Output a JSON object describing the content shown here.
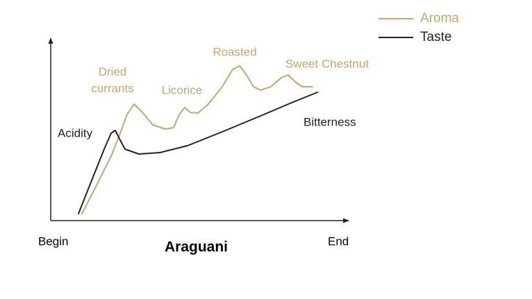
{
  "chart_data": {
    "type": "line",
    "title": "Araguani",
    "x_end_labels": [
      "Begin",
      "End"
    ],
    "xlim": [
      0,
      429
    ],
    "ylim": [
      0,
      263
    ],
    "legend": "upper right",
    "series": [
      {
        "name": "Aroma",
        "color": "#c4a66e",
        "x": [
          45,
          67,
          87,
          99,
          110,
          120,
          132,
          147,
          165,
          177,
          185,
          193,
          201,
          212,
          227,
          247,
          262,
          272,
          282,
          292,
          302,
          317,
          332,
          342,
          352,
          362,
          377
        ],
        "values": [
          10,
          53,
          93,
          123,
          153,
          168,
          156,
          138,
          132,
          134,
          153,
          163,
          156,
          155,
          168,
          193,
          218,
          223,
          210,
          193,
          188,
          193,
          206,
          210,
          200,
          193,
          193
        ]
      },
      {
        "name": "Taste",
        "color": "#222222",
        "x": [
          40,
          57,
          77,
          87,
          93,
          99,
          107,
          127,
          157,
          197,
          247,
          307,
          347,
          384
        ],
        "values": [
          10,
          53,
          103,
          126,
          130,
          118,
          103,
          96,
          98,
          108,
          128,
          153,
          170,
          185
        ]
      }
    ],
    "annotations": [
      {
        "text": "Dried\ncurrants",
        "series": 0
      },
      {
        "text": "Licorice",
        "series": 0
      },
      {
        "text": "Roasted",
        "series": 0
      },
      {
        "text": "Sweet Chestnut",
        "series": 0
      },
      {
        "text": "Acidity",
        "series": 1
      },
      {
        "text": "Bitterness",
        "series": 1
      }
    ]
  }
}
